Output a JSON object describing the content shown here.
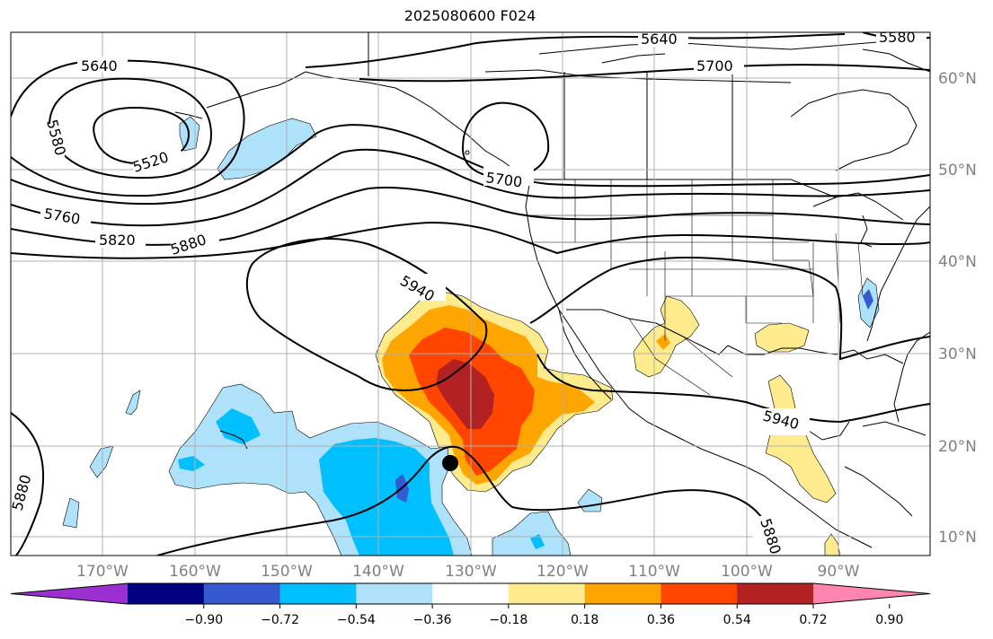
{
  "title": "2025080600 F024",
  "lat_ticks": [
    "60°N",
    "50°N",
    "40°N",
    "30°N",
    "20°N",
    "10°N"
  ],
  "lon_ticks": [
    "170°W",
    "160°W",
    "150°W",
    "140°W",
    "130°W",
    "120°W",
    "110°W",
    "100°W",
    "90°W"
  ],
  "colorbar": {
    "ticks": [
      "−0.90",
      "−0.72",
      "−0.54",
      "−0.36",
      "−0.18",
      "0.18",
      "0.36",
      "0.54",
      "0.72",
      "0.90"
    ],
    "colors": [
      "#9b30d0",
      "#000080",
      "#3459d1",
      "#00bfff",
      "#aee1fa",
      "#ffffff",
      "#fdeb8d",
      "#ffa500",
      "#ff4500",
      "#b22222",
      "#ff85b0"
    ]
  },
  "contour_labels": [
    "5640",
    "5580",
    "5520",
    "5760",
    "5820",
    "5880",
    "5700",
    "5700",
    "5640",
    "5580",
    "5940",
    "5940",
    "5880",
    "5880"
  ],
  "shading_colors": {
    "pos1": "#fdeb8d",
    "pos2": "#ffa500",
    "pos3": "#ff4500",
    "pos4": "#b22222",
    "neg1": "#aee1fa",
    "neg2": "#00bfff",
    "neg3": "#3459d1"
  },
  "marker": "storm-center-dot"
}
